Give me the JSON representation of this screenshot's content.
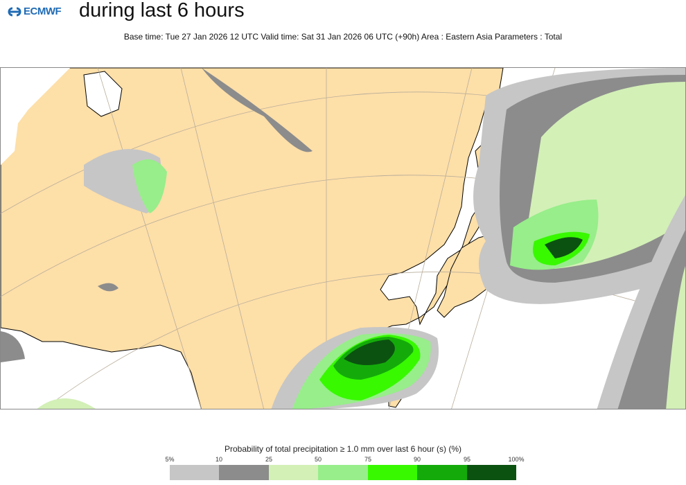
{
  "header": {
    "logo_text": "ECMWF",
    "title": "during last 6 hours",
    "subtitle": "Base time: Tue 27 Jan 2026 12 UTC Valid time: Sat 31 Jan 2026 06 UTC (+90h) Area : Eastern Asia Parameters : Total"
  },
  "map": {
    "area": "Eastern Asia",
    "land_color": "#fddfa8",
    "sea_color": "#ffffff"
  },
  "legend": {
    "title": "Probability of total precipitation ≥ 1.0 mm over last 6 hour (s) (%)",
    "ticks": [
      "5%",
      "10",
      "25",
      "50",
      "75",
      "90",
      "95",
      "100%"
    ],
    "colors": [
      "#c6c6c6",
      "#8c8c8c",
      "#d3f0b7",
      "#97ee8a",
      "#38f900",
      "#14ab0a",
      "#0b5210"
    ]
  }
}
